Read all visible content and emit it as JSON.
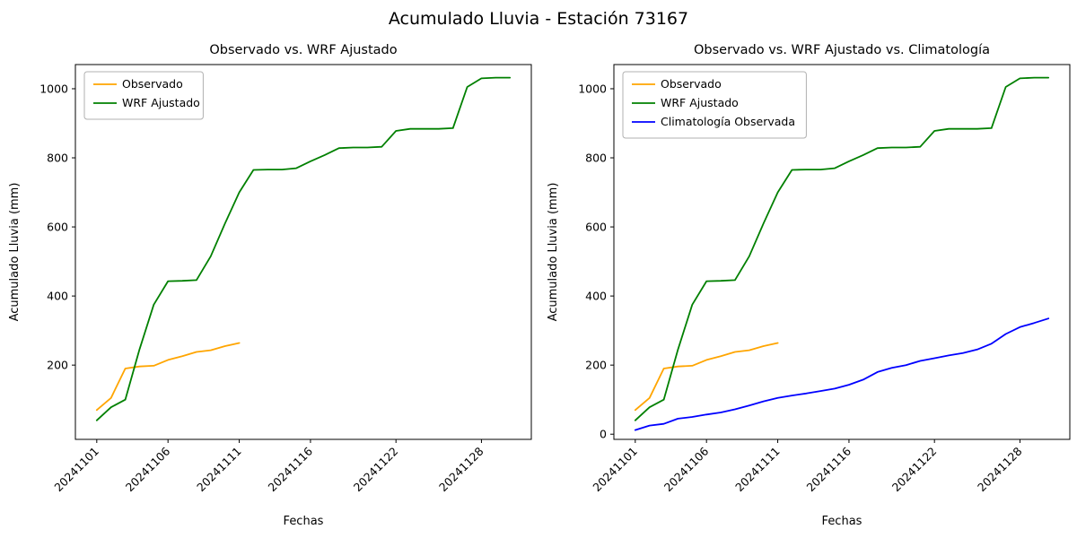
{
  "figure": {
    "title": "Acumulado Lluvia - Estación 73167"
  },
  "chart_data": [
    {
      "type": "line",
      "title": "Observado vs. WRF Ajustado",
      "xlabel": "Fechas",
      "ylabel": "Acumulado Lluvia (mm)",
      "xlim": [
        -0.5,
        31.5
      ],
      "ylim": [
        -15,
        1070
      ],
      "yticks": [
        200,
        400,
        600,
        800,
        1000
      ],
      "xticks": [
        {
          "pos": 1,
          "label": "20241101"
        },
        {
          "pos": 6,
          "label": "20241106"
        },
        {
          "pos": 11,
          "label": "20241111"
        },
        {
          "pos": 16,
          "label": "20241116"
        },
        {
          "pos": 22,
          "label": "20241122"
        },
        {
          "pos": 28,
          "label": "20241128"
        }
      ],
      "legend_position": "upper-left",
      "grid": false,
      "series": [
        {
          "name": "Observado",
          "color": "#FFA500",
          "x": [
            1,
            2,
            3,
            4,
            5,
            6,
            7,
            8,
            9,
            10,
            11
          ],
          "y": [
            70,
            105,
            190,
            196,
            198,
            215,
            226,
            238,
            243,
            255,
            264
          ]
        },
        {
          "name": "WRF Ajustado",
          "color": "#008000",
          "x": [
            1,
            2,
            3,
            4,
            5,
            6,
            7,
            8,
            9,
            10,
            11,
            12,
            13,
            14,
            15,
            16,
            17,
            18,
            19,
            20,
            21,
            22,
            23,
            24,
            25,
            26,
            27,
            28,
            29,
            30
          ],
          "y": [
            40,
            78,
            100,
            245,
            375,
            443,
            444,
            446,
            515,
            610,
            700,
            765,
            766,
            766,
            770,
            790,
            808,
            828,
            830,
            830,
            832,
            878,
            884,
            884,
            884,
            886,
            1005,
            1030,
            1032,
            1032
          ]
        }
      ]
    },
    {
      "type": "line",
      "title": "Observado vs. WRF Ajustado vs. Climatología",
      "xlabel": "Fechas",
      "ylabel": "Acumulado Lluvia (mm)",
      "xlim": [
        -0.5,
        31.5
      ],
      "ylim": [
        -15,
        1070
      ],
      "yticks": [
        0,
        200,
        400,
        600,
        800,
        1000
      ],
      "xticks": [
        {
          "pos": 1,
          "label": "20241101"
        },
        {
          "pos": 6,
          "label": "20241106"
        },
        {
          "pos": 11,
          "label": "20241111"
        },
        {
          "pos": 16,
          "label": "20241116"
        },
        {
          "pos": 22,
          "label": "20241122"
        },
        {
          "pos": 28,
          "label": "20241128"
        }
      ],
      "legend_position": "upper-left",
      "grid": false,
      "series": [
        {
          "name": "Observado",
          "color": "#FFA500",
          "x": [
            1,
            2,
            3,
            4,
            5,
            6,
            7,
            8,
            9,
            10,
            11
          ],
          "y": [
            70,
            105,
            190,
            196,
            198,
            215,
            226,
            238,
            243,
            255,
            264
          ]
        },
        {
          "name": "WRF Ajustado",
          "color": "#008000",
          "x": [
            1,
            2,
            3,
            4,
            5,
            6,
            7,
            8,
            9,
            10,
            11,
            12,
            13,
            14,
            15,
            16,
            17,
            18,
            19,
            20,
            21,
            22,
            23,
            24,
            25,
            26,
            27,
            28,
            29,
            30
          ],
          "y": [
            40,
            78,
            100,
            245,
            375,
            443,
            444,
            446,
            515,
            610,
            700,
            765,
            766,
            766,
            770,
            790,
            808,
            828,
            830,
            830,
            832,
            878,
            884,
            884,
            884,
            886,
            1005,
            1030,
            1032,
            1032
          ]
        },
        {
          "name": "Climatología Observada",
          "color": "#0000FF",
          "x": [
            1,
            2,
            3,
            4,
            5,
            6,
            7,
            8,
            9,
            10,
            11,
            12,
            13,
            14,
            15,
            16,
            17,
            18,
            19,
            20,
            21,
            22,
            23,
            24,
            25,
            26,
            27,
            28,
            29,
            30
          ],
          "y": [
            12,
            25,
            30,
            45,
            50,
            57,
            63,
            72,
            83,
            95,
            105,
            112,
            118,
            125,
            132,
            143,
            158,
            180,
            192,
            200,
            212,
            220,
            228,
            235,
            245,
            262,
            290,
            310,
            322,
            335
          ]
        }
      ]
    }
  ]
}
